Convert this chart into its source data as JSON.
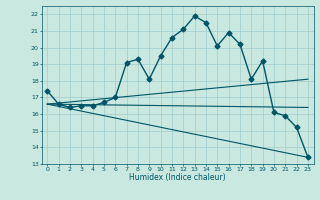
{
  "title": "",
  "xlabel": "Humidex (Indice chaleur)",
  "ylabel": "",
  "xlim": [
    -0.5,
    23.5
  ],
  "ylim": [
    13,
    22.5
  ],
  "yticks": [
    13,
    14,
    15,
    16,
    17,
    18,
    19,
    20,
    21,
    22
  ],
  "xticks": [
    0,
    1,
    2,
    3,
    4,
    5,
    6,
    7,
    8,
    9,
    10,
    11,
    12,
    13,
    14,
    15,
    16,
    17,
    18,
    19,
    20,
    21,
    22,
    23
  ],
  "bg_color": "#c8e8e0",
  "grid_color": "#a0cccc",
  "line_color": "#005566",
  "series": [
    {
      "x": [
        0,
        1,
        2,
        3,
        4,
        5,
        6,
        7,
        8,
        9,
        10,
        11,
        12,
        13,
        14,
        15,
        16,
        17,
        18,
        19,
        20,
        21,
        22,
        23
      ],
      "y": [
        17.4,
        16.6,
        16.4,
        16.5,
        16.5,
        16.7,
        17.0,
        19.1,
        19.3,
        18.1,
        19.5,
        20.6,
        21.1,
        21.9,
        21.5,
        20.1,
        20.9,
        20.2,
        18.1,
        19.2,
        16.1,
        15.9,
        15.2,
        13.4
      ],
      "marker": "D",
      "markersize": 2.5,
      "linewidth": 1.0,
      "has_marker": true
    },
    {
      "x": [
        0,
        23
      ],
      "y": [
        16.6,
        16.4
      ],
      "marker": null,
      "markersize": 0,
      "linewidth": 0.8,
      "has_marker": false
    },
    {
      "x": [
        0,
        23
      ],
      "y": [
        16.6,
        13.4
      ],
      "marker": null,
      "markersize": 0,
      "linewidth": 0.8,
      "has_marker": false
    },
    {
      "x": [
        0,
        23
      ],
      "y": [
        16.6,
        18.1
      ],
      "marker": null,
      "markersize": 0,
      "linewidth": 0.8,
      "has_marker": false
    }
  ]
}
